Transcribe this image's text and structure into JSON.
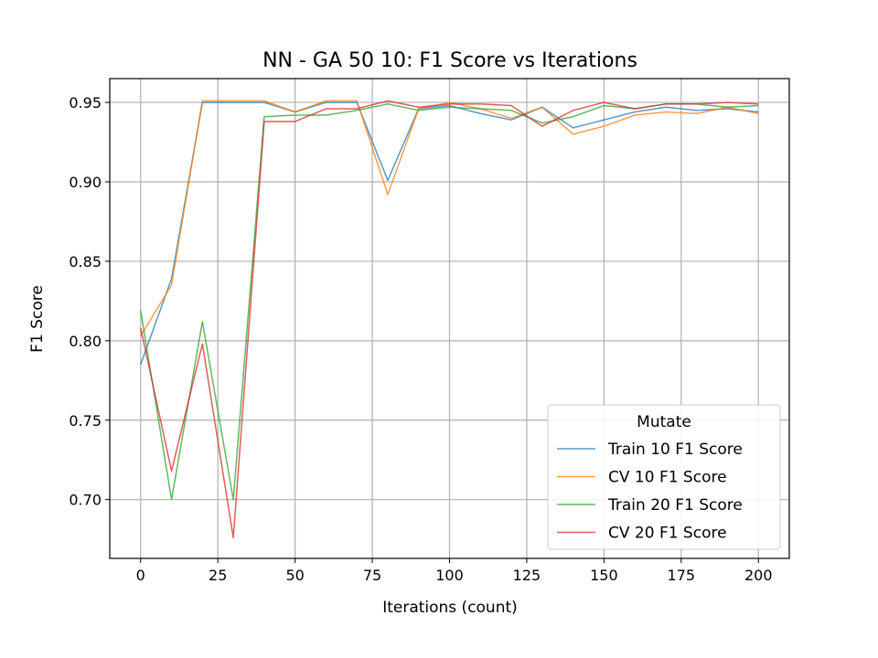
{
  "chart_data": {
    "type": "line",
    "title": "NN - GA 50 10: F1 Score vs Iterations",
    "xlabel": "Iterations (count)",
    "ylabel": "F1 Score",
    "xlim": [
      -10,
      210
    ],
    "ylim": [
      0.663,
      0.965
    ],
    "xticks": [
      0,
      25,
      50,
      75,
      100,
      125,
      150,
      175,
      200
    ],
    "yticks": [
      0.7,
      0.75,
      0.8,
      0.85,
      0.9,
      0.95
    ],
    "ytick_format": 2,
    "grid": true,
    "legend": {
      "title": "Mutate",
      "position": "lower-right"
    },
    "x": [
      0,
      10,
      20,
      30,
      40,
      50,
      60,
      70,
      80,
      90,
      100,
      110,
      120,
      130,
      140,
      150,
      160,
      170,
      180,
      190,
      200
    ],
    "series": [
      {
        "name": "Train 10 F1 Score",
        "color": "#1f77b4",
        "values": [
          0.785,
          0.839,
          0.95,
          0.95,
          0.95,
          0.944,
          0.95,
          0.95,
          0.901,
          0.946,
          0.948,
          0.943,
          0.939,
          0.947,
          0.934,
          0.939,
          0.944,
          0.947,
          0.945,
          0.946,
          0.944
        ]
      },
      {
        "name": "CV 10 F1 Score",
        "color": "#ff7f0e",
        "values": [
          0.803,
          0.835,
          0.951,
          0.951,
          0.951,
          0.944,
          0.951,
          0.951,
          0.892,
          0.946,
          0.95,
          0.946,
          0.94,
          0.947,
          0.93,
          0.935,
          0.942,
          0.944,
          0.943,
          0.947,
          0.943
        ]
      },
      {
        "name": "Train 20 F1 Score",
        "color": "#2ca02c",
        "values": [
          0.819,
          0.7,
          0.812,
          0.7,
          0.941,
          0.942,
          0.942,
          0.945,
          0.949,
          0.945,
          0.947,
          0.946,
          0.945,
          0.937,
          0.941,
          0.948,
          0.946,
          0.949,
          0.949,
          0.947,
          0.948
        ]
      },
      {
        "name": "CV 20 F1 Score",
        "color": "#d62728",
        "values": [
          0.808,
          0.718,
          0.798,
          0.676,
          0.938,
          0.938,
          0.946,
          0.946,
          0.951,
          0.947,
          0.949,
          0.949,
          0.948,
          0.935,
          0.945,
          0.95,
          0.946,
          0.949,
          0.949,
          0.95,
          0.949
        ]
      }
    ]
  }
}
